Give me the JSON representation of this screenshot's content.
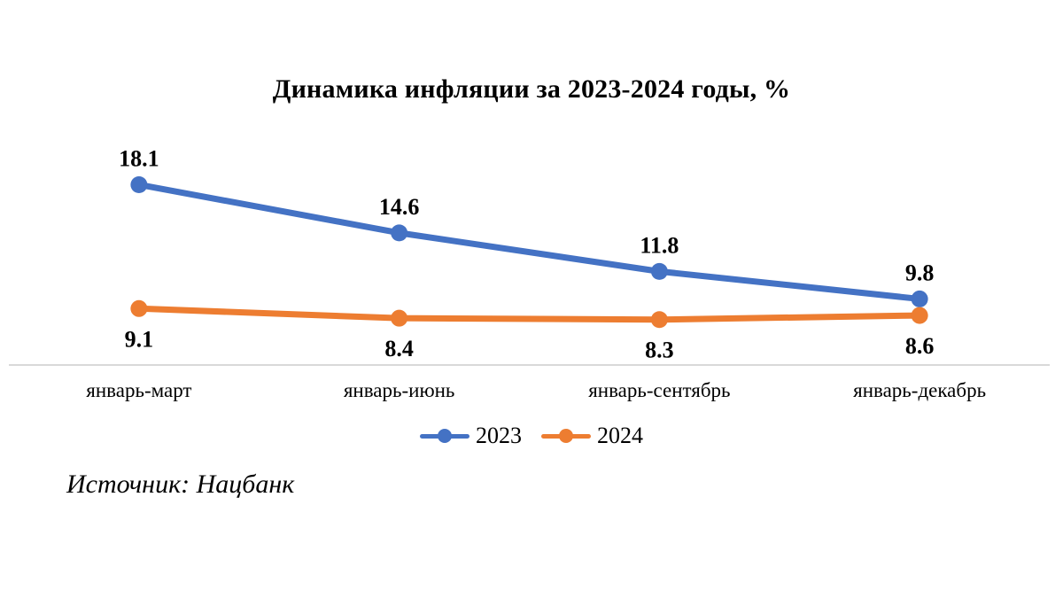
{
  "chart_data": {
    "type": "line",
    "title": "Динамика инфляции за 2023-2024 годы, %",
    "categories": [
      "январь-март",
      "январь-июнь",
      "январь-сентябрь",
      "январь-декабрь"
    ],
    "series": [
      {
        "name": "2023",
        "color": "#4472C4",
        "values": [
          18.1,
          14.6,
          11.8,
          9.8
        ],
        "label_position": "above"
      },
      {
        "name": "2024",
        "color": "#ED7D31",
        "values": [
          9.1,
          8.4,
          8.3,
          8.6
        ],
        "label_position": "below"
      }
    ],
    "ylim": [
      5,
      20
    ],
    "grid": false,
    "legend_position": "bottom",
    "axis_line_color": "#D9D9D9",
    "data_label_color": "#000000"
  },
  "source_note": "Источник: Нацбанк"
}
